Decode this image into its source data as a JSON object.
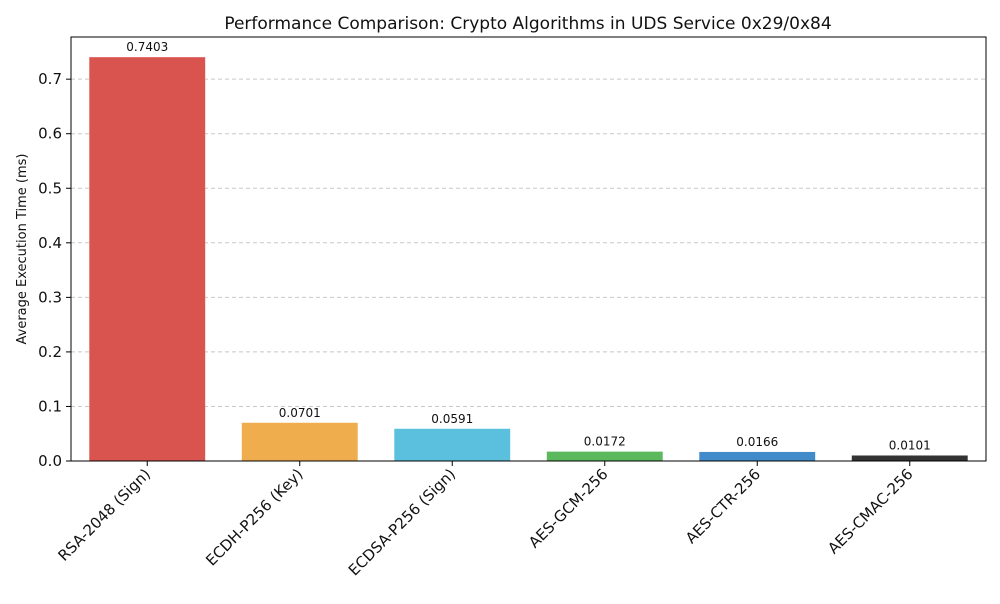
{
  "chart_data": {
    "type": "bar",
    "title": "Performance Comparison: Crypto Algorithms in UDS Service 0x29/0x84",
    "xlabel": "",
    "ylabel": "Average Execution Time (ms)",
    "categories": [
      "RSA-2048 (Sign)",
      "ECDH-P256 (Key)",
      "ECDSA-P256 (Sign)",
      "AES-GCM-256",
      "AES-CTR-256",
      "AES-CMAC-256"
    ],
    "values": [
      0.7403,
      0.0701,
      0.0591,
      0.0172,
      0.0166,
      0.0101
    ],
    "value_labels": [
      "0.7403",
      "0.0701",
      "0.0591",
      "0.0172",
      "0.0166",
      "0.0101"
    ],
    "colors": [
      "#d9534f",
      "#f0ad4e",
      "#5bc0de",
      "#5cb85c",
      "#428bca",
      "#333333"
    ],
    "ylim": [
      0,
      0.7773
    ],
    "yticks": [
      0.0,
      0.1,
      0.2,
      0.3,
      0.4,
      0.5,
      0.6,
      0.7
    ],
    "ytick_labels": [
      "0.0",
      "0.1",
      "0.2",
      "0.3",
      "0.4",
      "0.5",
      "0.6",
      "0.7"
    ],
    "grid": "y-dashed",
    "legend": "none"
  }
}
